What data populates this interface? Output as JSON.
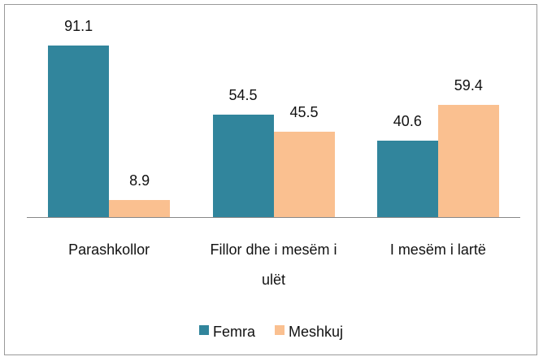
{
  "chart_data": {
    "type": "bar",
    "categories": [
      "Parashkollor",
      "Fillor dhe i mesëm i ulët",
      "I mesëm i lartë"
    ],
    "series": [
      {
        "name": "Femra",
        "color": "#31859c",
        "values": [
          91.1,
          54.5,
          40.6
        ]
      },
      {
        "name": "Meshkuj",
        "color": "#fac090",
        "values": [
          8.9,
          45.5,
          59.4
        ]
      }
    ],
    "legend": "bottom"
  }
}
